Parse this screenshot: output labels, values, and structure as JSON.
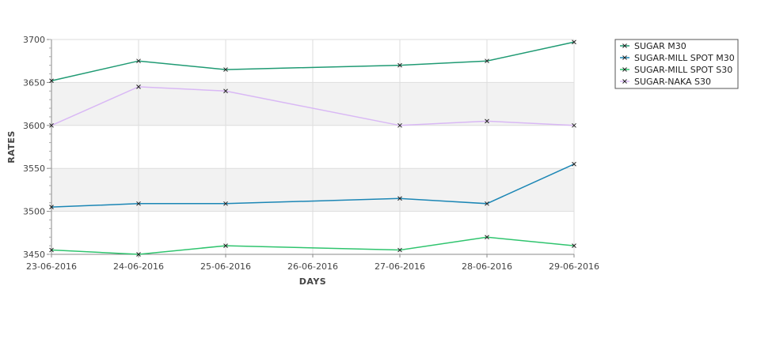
{
  "chart_data": {
    "type": "line",
    "title": "",
    "xlabel": "DAYS",
    "ylabel": "RATES",
    "categories": [
      "23-06-2016",
      "24-06-2016",
      "25-06-2016",
      "26-06-2016",
      "27-06-2016",
      "28-06-2016",
      "29-06-2016"
    ],
    "yticks": [
      3450,
      3500,
      3550,
      3600,
      3650,
      3700
    ],
    "ylim": [
      3450,
      3700
    ],
    "grid": true,
    "legend_position": "right",
    "series": [
      {
        "name": "SUGAR M30",
        "color": "#1f9a73",
        "values": [
          3652,
          3675,
          3665,
          null,
          3670,
          3675,
          3697
        ]
      },
      {
        "name": "SUGAR-MILL SPOT M30",
        "color": "#1b86b5",
        "values": [
          3505,
          3509,
          3509,
          null,
          3515,
          3509,
          3555
        ]
      },
      {
        "name": "SUGAR-MILL SPOT S30",
        "color": "#2fc46e",
        "values": [
          3455,
          3450,
          3460,
          null,
          3455,
          3470,
          3460
        ]
      },
      {
        "name": "SUGAR-NAKA S30",
        "color": "#d9b8f5",
        "values": [
          3600,
          3645,
          3640,
          null,
          3600,
          3605,
          3600
        ]
      }
    ]
  }
}
